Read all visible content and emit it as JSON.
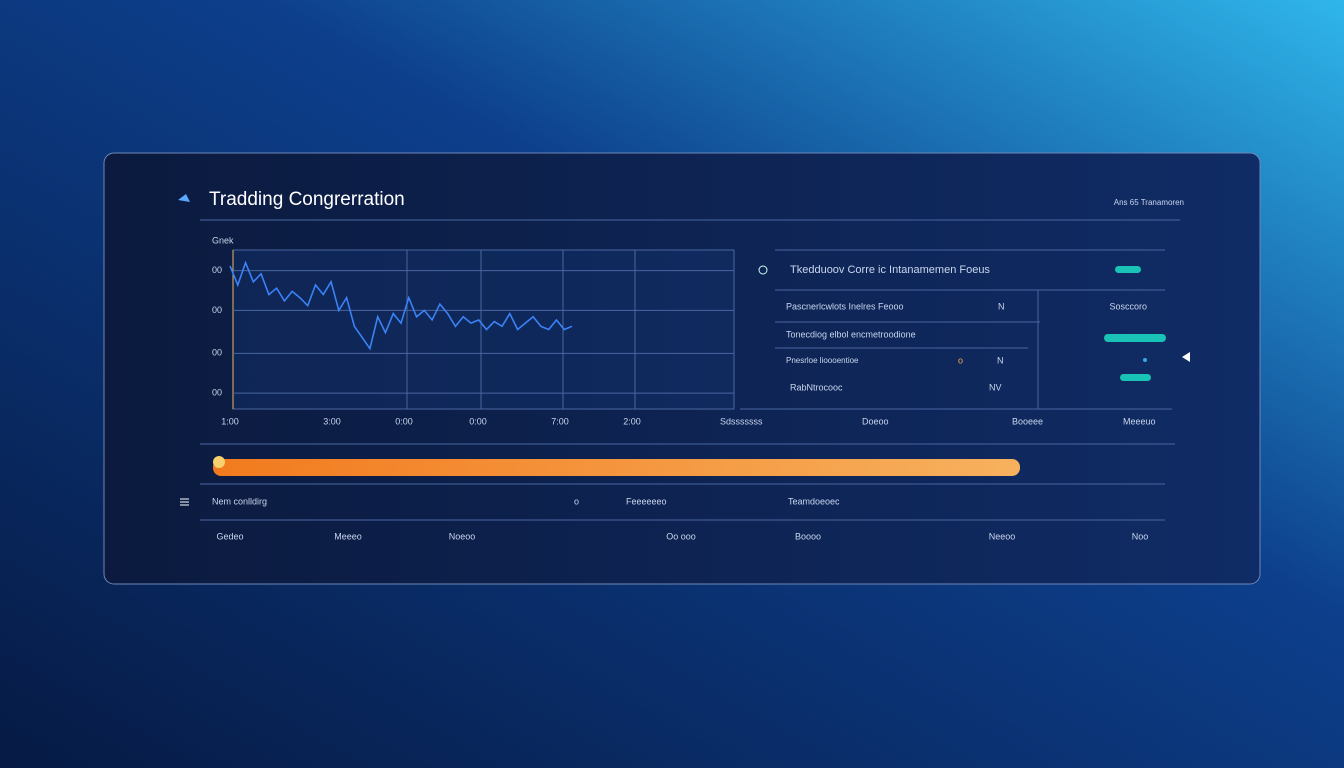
{
  "header": {
    "title": "Tradding Congrerration",
    "meta": "Ans 65 Tranamoren"
  },
  "chart": {
    "type": "line",
    "label": "Gnek",
    "color": "#3b82f6",
    "values": [
      90,
      78,
      92,
      80,
      85,
      72,
      76,
      68,
      74,
      70,
      65,
      78,
      72,
      80,
      62,
      70,
      52,
      45,
      38,
      58,
      48,
      60,
      54,
      70,
      58,
      62,
      56,
      66,
      60,
      52,
      58,
      54,
      56,
      50,
      55,
      52,
      60,
      50,
      54,
      58,
      52,
      50,
      56,
      50,
      52
    ],
    "ylim": [
      0,
      100
    ],
    "yticks": [
      {
        "value": 87,
        "label": "00"
      },
      {
        "value": 62,
        "label": "00"
      },
      {
        "value": 35,
        "label": "00"
      },
      {
        "value": 10,
        "label": "00"
      }
    ],
    "xticks": [
      "1:00",
      "3:00",
      "0:00",
      "0:00",
      "7:00",
      "2:00"
    ],
    "grid": true
  },
  "side": {
    "heading": "Tkedduoov Corre ic Intanamemen Foeus",
    "rows": [
      [
        "Pascnerlcwlots Inelres Feooo",
        "N",
        "Sosccoro"
      ],
      [
        "Tonecdiog elbol encmetroodione"
      ],
      [
        "Pnesrloe lioooentioe",
        "o",
        "N"
      ],
      [
        "RabNtrocooc",
        "NV"
      ]
    ],
    "footer": [
      "Sdsssssss",
      "Doeoo",
      "Booeee",
      "Meeeuo"
    ]
  },
  "bottom": {
    "label": "Nem conlldirg",
    "cells": [
      "o",
      "Feeeeeeo",
      "Teamdoeoec"
    ],
    "footer": [
      "Gedeo",
      "Meeeo",
      "Noeoo",
      "Oo ooo",
      "Boooo",
      "Neeoo",
      "Noo"
    ]
  }
}
